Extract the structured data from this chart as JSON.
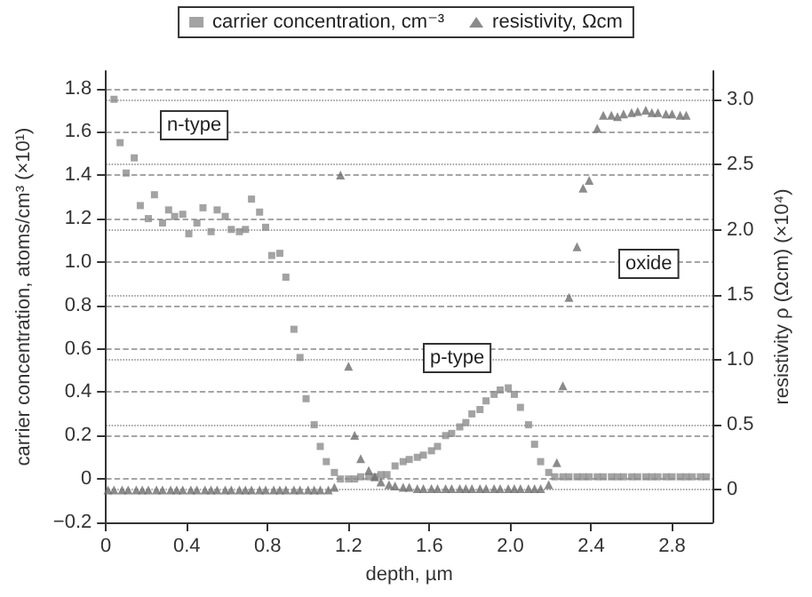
{
  "chart_data": {
    "type": "scatter",
    "xlabel": "depth, µm",
    "ylabel": "carrier concentration, atoms/cm³ (×10¹)",
    "y2label": "resistivity ρ (Ωcm) (×10⁴)",
    "xlim": [
      0,
      3.0
    ],
    "xticks": [
      0,
      0.4,
      0.8,
      1.2,
      1.6,
      {
        "value": 2,
        "label": "2.0"
      },
      2.4,
      2.8
    ],
    "ylim": [
      -0.2,
      1.88
    ],
    "yticks": [
      {
        "value": -0.2,
        "label": "−0.2"
      },
      0,
      0.2,
      0.4,
      0.6,
      0.8,
      {
        "value": 1,
        "label": "1.0"
      },
      1.2,
      1.4,
      1.6,
      1.8
    ],
    "y2lim": [
      -0.25,
      3.22
    ],
    "y2ticks": [
      0,
      0.5,
      {
        "value": 1,
        "label": "1.0"
      },
      1.5,
      {
        "value": 2,
        "label": "2.0"
      },
      2.5,
      {
        "value": 3,
        "label": "3.0"
      }
    ],
    "grid": true,
    "legend": "top",
    "annotations": [
      "n-type",
      "p-type",
      "oxide"
    ],
    "series": [
      {
        "name": "carrier concentration, cm⁻³",
        "color": "#8c8c8c",
        "marker": "square",
        "x": [
          0.04,
          0.07,
          0.1,
          0.14,
          0.17,
          0.21,
          0.24,
          0.28,
          0.31,
          0.34,
          0.38,
          0.41,
          0.45,
          0.48,
          0.52,
          0.55,
          0.59,
          0.62,
          0.66,
          0.69,
          0.72,
          0.76,
          0.79,
          0.82,
          0.86,
          0.89,
          0.93,
          0.96,
          0.99,
          1.03,
          1.06,
          1.09,
          1.13,
          1.16,
          1.2,
          1.23,
          1.26,
          1.3,
          1.33,
          1.36,
          1.39,
          1.43,
          1.47,
          1.5,
          1.54,
          1.57,
          1.61,
          1.64,
          1.68,
          1.71,
          1.75,
          1.78,
          1.81,
          1.85,
          1.88,
          1.92,
          1.95,
          1.99,
          2.02,
          2.05,
          2.09,
          2.12,
          2.15,
          2.19,
          2.22,
          2.26,
          2.29,
          2.33,
          2.36,
          2.39,
          2.43,
          2.46,
          2.5,
          2.53,
          2.56,
          2.6,
          2.63,
          2.67,
          2.7,
          2.73,
          2.77,
          2.8,
          2.84,
          2.87,
          2.9,
          2.94,
          2.97
        ],
        "values": [
          1.75,
          1.55,
          1.41,
          1.48,
          1.26,
          1.2,
          1.31,
          1.18,
          1.24,
          1.21,
          1.22,
          1.13,
          1.18,
          1.25,
          1.14,
          1.24,
          1.21,
          1.15,
          1.14,
          1.15,
          1.29,
          1.23,
          1.16,
          1.03,
          1.04,
          0.93,
          0.69,
          0.56,
          0.37,
          0.25,
          0.15,
          0.08,
          0.03,
          0.0,
          0.0,
          0.0,
          0.01,
          0.01,
          0.01,
          0.02,
          0.02,
          0.06,
          0.08,
          0.09,
          0.1,
          0.11,
          0.13,
          0.15,
          0.2,
          0.21,
          0.24,
          0.26,
          0.3,
          0.32,
          0.36,
          0.39,
          0.41,
          0.42,
          0.39,
          0.33,
          0.25,
          0.16,
          0.08,
          0.03,
          0.01,
          0.01,
          0.01,
          0.01,
          0.01,
          0.01,
          0.01,
          0.01,
          0.01,
          0.01,
          0.01,
          0.01,
          0.01,
          0.01,
          0.01,
          0.01,
          0.01,
          0.01,
          0.01,
          0.01,
          0.01,
          0.01,
          0.01
        ]
      },
      {
        "name": "resistivity, Ωcm",
        "color": "#6e6e6e",
        "marker": "triangle",
        "axis": "y2",
        "x": [
          0.01,
          0.04,
          0.08,
          0.11,
          0.15,
          0.18,
          0.21,
          0.25,
          0.28,
          0.32,
          0.35,
          0.38,
          0.42,
          0.45,
          0.49,
          0.52,
          0.55,
          0.59,
          0.62,
          0.66,
          0.69,
          0.72,
          0.76,
          0.79,
          0.83,
          0.86,
          0.89,
          0.93,
          0.96,
          1.0,
          1.03,
          1.06,
          1.1,
          1.13,
          1.16,
          1.2,
          1.23,
          1.26,
          1.3,
          1.33,
          1.36,
          1.4,
          1.43,
          1.47,
          1.5,
          1.54,
          1.57,
          1.61,
          1.64,
          1.68,
          1.71,
          1.75,
          1.78,
          1.81,
          1.85,
          1.88,
          1.92,
          1.95,
          1.99,
          2.02,
          2.05,
          2.09,
          2.12,
          2.15,
          2.19,
          2.23,
          2.26,
          2.29,
          2.33,
          2.36,
          2.39,
          2.43,
          2.46,
          2.5,
          2.53,
          2.56,
          2.6,
          2.63,
          2.67,
          2.7,
          2.73,
          2.77,
          2.8,
          2.84,
          2.87
        ],
        "values": [
          0,
          0,
          0,
          0,
          0,
          0,
          0,
          0,
          0,
          0,
          0,
          0,
          0,
          0,
          0,
          0,
          0,
          0,
          0,
          0,
          0,
          0,
          0,
          0,
          0,
          0,
          0,
          0,
          0,
          0,
          0,
          0,
          0,
          0.02,
          2.42,
          0.95,
          0.42,
          0.24,
          0.15,
          0.1,
          0.06,
          0.04,
          0.03,
          0.02,
          0.02,
          0.01,
          0.01,
          0.01,
          0.01,
          0.01,
          0.01,
          0.01,
          0.01,
          0.01,
          0.01,
          0.01,
          0.01,
          0.01,
          0.01,
          0.01,
          0.01,
          0.01,
          0.01,
          0.01,
          0.04,
          0.21,
          0.8,
          1.48,
          1.87,
          2.32,
          2.38,
          2.78,
          2.88,
          2.88,
          2.87,
          2.89,
          2.9,
          2.91,
          2.92,
          2.9,
          2.9,
          2.89,
          2.89,
          2.88,
          2.88
        ]
      }
    ]
  }
}
